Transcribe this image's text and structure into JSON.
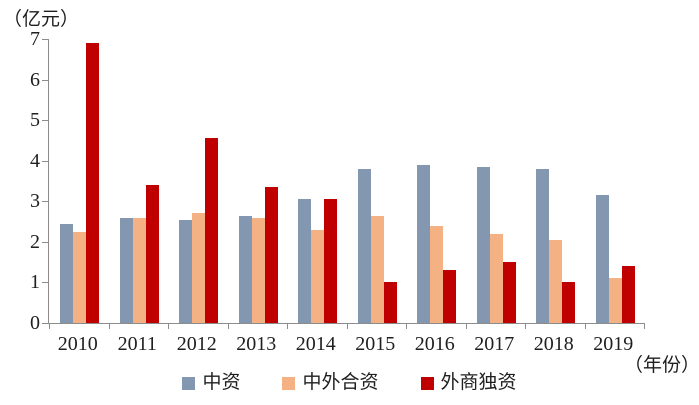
{
  "chart_data": {
    "type": "bar",
    "title": "",
    "y_unit_label": "（亿元）",
    "x_unit_label": "（年份）",
    "categories": [
      "2010",
      "2011",
      "2012",
      "2013",
      "2014",
      "2015",
      "2016",
      "2017",
      "2018",
      "2019"
    ],
    "series": [
      {
        "name": "中资",
        "color": "#8497B0",
        "values": [
          2.45,
          2.6,
          2.55,
          2.65,
          3.05,
          3.8,
          3.9,
          3.85,
          3.8,
          3.15
        ]
      },
      {
        "name": "中外合资",
        "color": "#F4B183",
        "values": [
          2.25,
          2.6,
          2.7,
          2.6,
          2.3,
          2.65,
          2.4,
          2.2,
          2.05,
          1.1
        ]
      },
      {
        "name": "外商独资",
        "color": "#C00000",
        "values": [
          6.9,
          3.4,
          4.55,
          3.35,
          3.05,
          1.0,
          1.3,
          1.5,
          1.0,
          1.4
        ]
      }
    ],
    "ylim": [
      0,
      7
    ],
    "yticks": [
      0,
      1,
      2,
      3,
      4,
      5,
      6,
      7
    ],
    "grid": false,
    "legend_position": "bottom",
    "axis_color": "#8c8c8c",
    "text_color": "#1f1f1f",
    "background_color": "#ffffff"
  }
}
